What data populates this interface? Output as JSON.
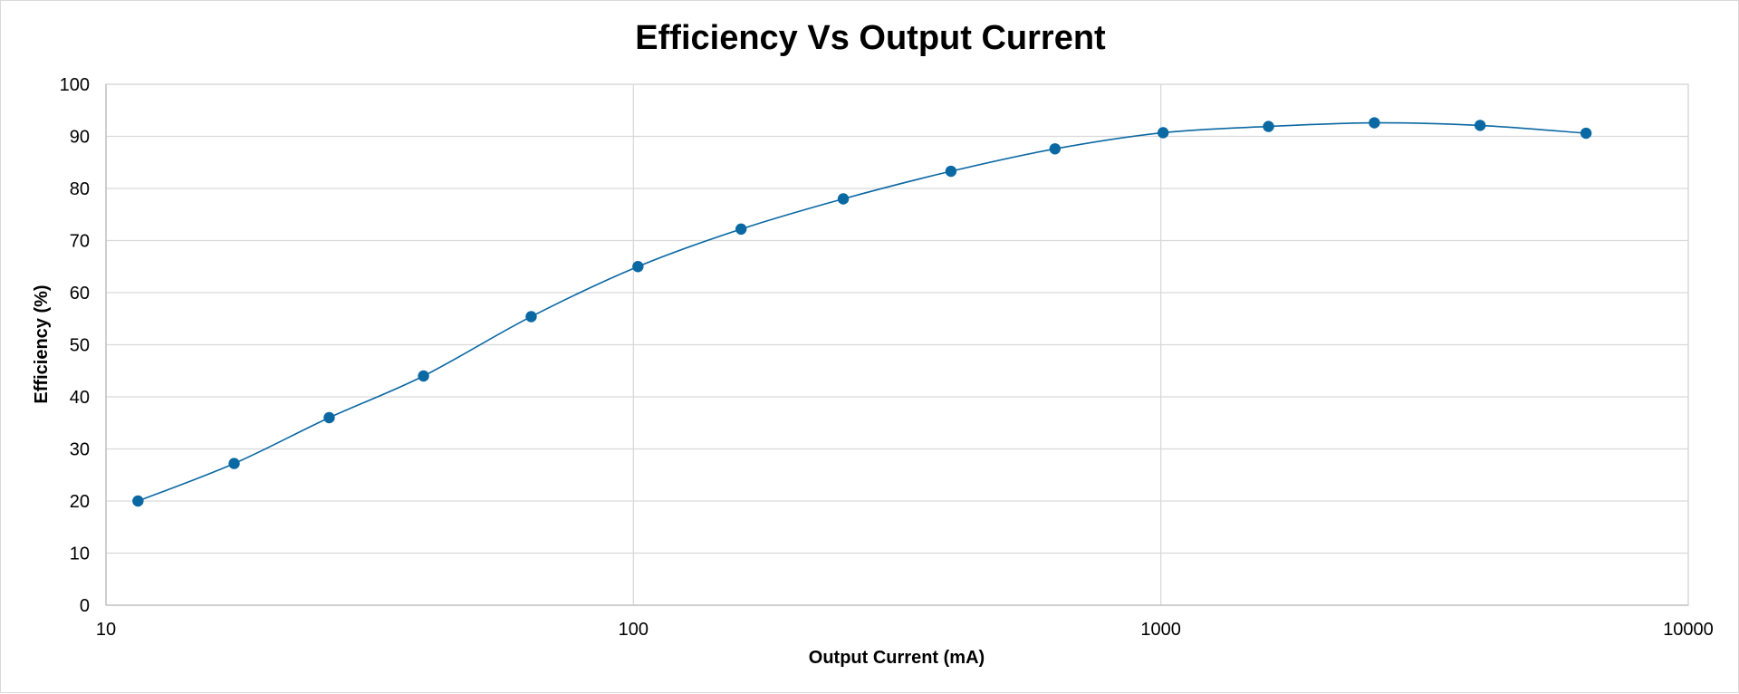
{
  "chart_data": {
    "type": "scatter",
    "title": "Efficiency Vs Output Current",
    "xlabel": "Output Current (mA)",
    "ylabel": "Efficiency (%)",
    "x_scale": "log",
    "xlim": [
      10,
      10000
    ],
    "ylim": [
      0,
      100
    ],
    "x_ticks": [
      10,
      100,
      1000,
      10000
    ],
    "x_tick_labels": [
      "10",
      "100",
      "1000",
      "10000"
    ],
    "y_ticks": [
      0,
      10,
      20,
      30,
      40,
      50,
      60,
      70,
      80,
      90,
      100
    ],
    "y_tick_labels": [
      "0",
      "10",
      "20",
      "30",
      "40",
      "50",
      "60",
      "70",
      "80",
      "90",
      "100"
    ],
    "grid": true,
    "line": "smooth",
    "series": [
      {
        "color": "#0a68a3",
        "x": [
          11.5,
          17.5,
          26.5,
          40,
          64,
          102,
          160,
          250,
          400,
          630,
          1010,
          1600,
          2540,
          4030,
          6400
        ],
        "y": [
          20,
          27.2,
          36,
          44,
          55.4,
          65,
          72.2,
          78,
          83.3,
          87.6,
          90.7,
          91.9,
          92.6,
          92.1,
          90.6
        ]
      }
    ]
  }
}
